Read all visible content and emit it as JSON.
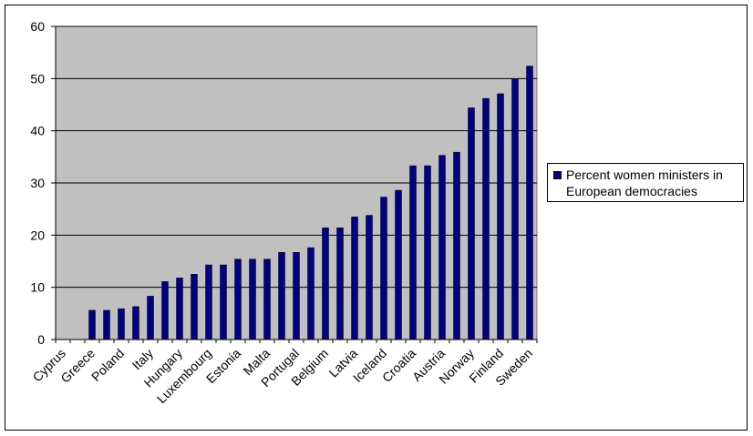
{
  "chart_data": {
    "type": "bar",
    "categories": [
      "Cyprus",
      "",
      "Greece",
      "",
      "Poland",
      "",
      "Italy",
      "",
      "Hungary",
      "",
      "Luxembourg",
      "",
      "Estonia",
      "",
      "Malta",
      "",
      "Portugal",
      "",
      "Belgium",
      "",
      "Latvia",
      "",
      "Iceland",
      "",
      "Croatia",
      "",
      "Austria",
      "",
      "Norway",
      "",
      "Finland",
      "",
      "Sweden"
    ],
    "series": [
      {
        "name": "Percent women ministers in European democracies",
        "values": [
          0,
          0,
          5.6,
          5.6,
          5.9,
          6.3,
          8.3,
          11.1,
          11.8,
          12.5,
          14.3,
          14.3,
          15.4,
          15.4,
          15.4,
          16.7,
          16.7,
          17.6,
          21.4,
          21.4,
          23.5,
          23.8,
          27.3,
          28.6,
          33.3,
          33.3,
          35.3,
          35.9,
          44.4,
          46.2,
          47.1,
          50.0,
          52.4
        ]
      }
    ],
    "ylim": [
      0,
      60
    ],
    "yticks": [
      "0",
      "10",
      "20",
      "30",
      "40",
      "50",
      "60"
    ],
    "grid": true,
    "legend": "right",
    "colors": {
      "bar": "#000080",
      "plot_background": "#C0C0C0"
    }
  }
}
